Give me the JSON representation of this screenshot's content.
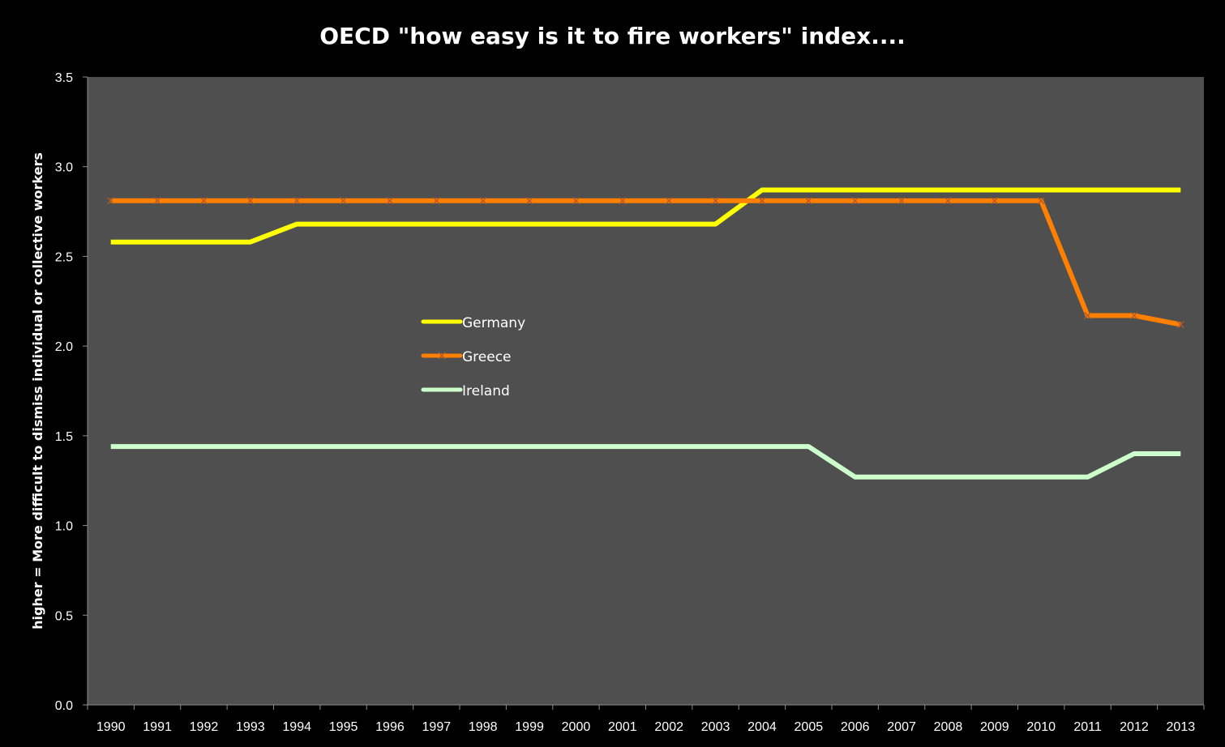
{
  "chart_data": {
    "type": "line",
    "title": "OECD \"how easy is it to fire workers\" index....",
    "xlabel": "",
    "ylabel": "higher = More difficult to dismiss individual or collective workers",
    "ylim": [
      0,
      3.5
    ],
    "yticks": [
      "0.0",
      "0.5",
      "1.0",
      "1.5",
      "2.0",
      "2.5",
      "3.0",
      "3.5"
    ],
    "categories": [
      "1990",
      "1991",
      "1992",
      "1993",
      "1994",
      "1995",
      "1996",
      "1997",
      "1998",
      "1999",
      "2000",
      "2001",
      "2002",
      "2003",
      "2004",
      "2005",
      "2006",
      "2007",
      "2008",
      "2009",
      "2010",
      "2011",
      "2012",
      "2013"
    ],
    "series": [
      {
        "name": "Germany",
        "color": "#ffff00",
        "marker": "none",
        "values": [
          2.58,
          2.58,
          2.58,
          2.58,
          2.68,
          2.68,
          2.68,
          2.68,
          2.68,
          2.68,
          2.68,
          2.68,
          2.68,
          2.68,
          2.87,
          2.87,
          2.87,
          2.87,
          2.87,
          2.87,
          2.87,
          2.87,
          2.87,
          2.87
        ]
      },
      {
        "name": "Greece",
        "color": "#ff7f00",
        "marker": "x",
        "values": [
          2.81,
          2.81,
          2.81,
          2.81,
          2.81,
          2.81,
          2.81,
          2.81,
          2.81,
          2.81,
          2.81,
          2.81,
          2.81,
          2.81,
          2.81,
          2.81,
          2.81,
          2.81,
          2.81,
          2.81,
          2.81,
          2.17,
          2.17,
          2.12
        ]
      },
      {
        "name": "Ireland",
        "color": "#ccffcc",
        "marker": "none",
        "values": [
          1.44,
          1.44,
          1.44,
          1.44,
          1.44,
          1.44,
          1.44,
          1.44,
          1.44,
          1.44,
          1.44,
          1.44,
          1.44,
          1.44,
          1.44,
          1.44,
          1.27,
          1.27,
          1.27,
          1.27,
          1.27,
          1.27,
          1.4,
          1.4
        ]
      }
    ],
    "grid": false,
    "legend": "center",
    "plot_background": "#4f4f4f",
    "page_background": "#000000"
  }
}
